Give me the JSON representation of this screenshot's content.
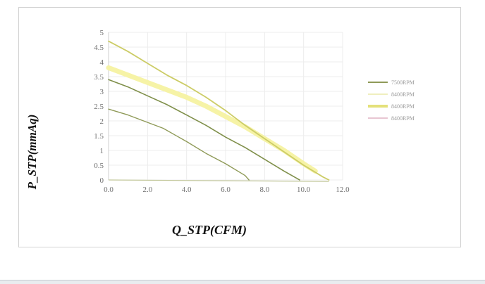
{
  "chart_data": {
    "type": "line",
    "xlabel": "Q_STP(CFM)",
    "ylabel": "P_STP(mmAq)",
    "xlim": [
      0,
      12
    ],
    "ylim": [
      0,
      5
    ],
    "x_ticks": [
      "0.0",
      "2.0",
      "4.0",
      "6.0",
      "8.0",
      "10.0",
      "12.0"
    ],
    "y_ticks": [
      "0",
      "0.5",
      "1",
      "1.5",
      "2",
      "2.5",
      "3",
      "3.5",
      "4",
      "4.5",
      "5"
    ],
    "grid": true,
    "legend_position": "right",
    "series": [
      {
        "name": "7500RPM",
        "color": "#8f9a58",
        "x": [
          0.0,
          1.0,
          2.0,
          2.8,
          4.0,
          5.0,
          6.0,
          7.0,
          7.2
        ],
        "y": [
          2.4,
          2.2,
          1.95,
          1.75,
          1.3,
          0.9,
          0.55,
          0.15,
          0.0
        ]
      },
      {
        "name": "8400RPM",
        "color": "#f6f3a6",
        "x": [
          0.0,
          1.0,
          2.0,
          3.0,
          4.0,
          5.0,
          6.0,
          7.0,
          8.0,
          9.0,
          10.0,
          10.6
        ],
        "y": [
          3.8,
          3.55,
          3.3,
          3.05,
          2.8,
          2.5,
          2.15,
          1.8,
          1.4,
          1.0,
          0.55,
          0.3
        ]
      },
      {
        "name": "8400RPM",
        "color": "#cccc66",
        "x": [
          0.0,
          1.0,
          2.0,
          3.0,
          4.0,
          5.0,
          6.0,
          7.0,
          8.0,
          9.0,
          10.0,
          11.0,
          11.3
        ],
        "y": [
          4.7,
          4.35,
          3.95,
          3.55,
          3.2,
          2.8,
          2.35,
          1.85,
          1.4,
          0.95,
          0.5,
          0.1,
          0.0
        ]
      },
      {
        "name": "8400RPM",
        "color": "#7f8f4a",
        "x": [
          0.0,
          1.0,
          2.0,
          3.0,
          4.0,
          5.0,
          6.0,
          7.0,
          8.0,
          9.0,
          9.8
        ],
        "y": [
          3.4,
          3.15,
          2.85,
          2.55,
          2.2,
          1.85,
          1.45,
          1.1,
          0.7,
          0.3,
          0.0
        ]
      }
    ],
    "baseline": {
      "color": "#c2c79a",
      "x": [
        0.0,
        11.3
      ],
      "y": [
        0.0,
        -0.05
      ]
    },
    "legend_colors": [
      "#8f9a58",
      "#f0efbe",
      "#e4e17a",
      "#e8c6d2"
    ]
  }
}
